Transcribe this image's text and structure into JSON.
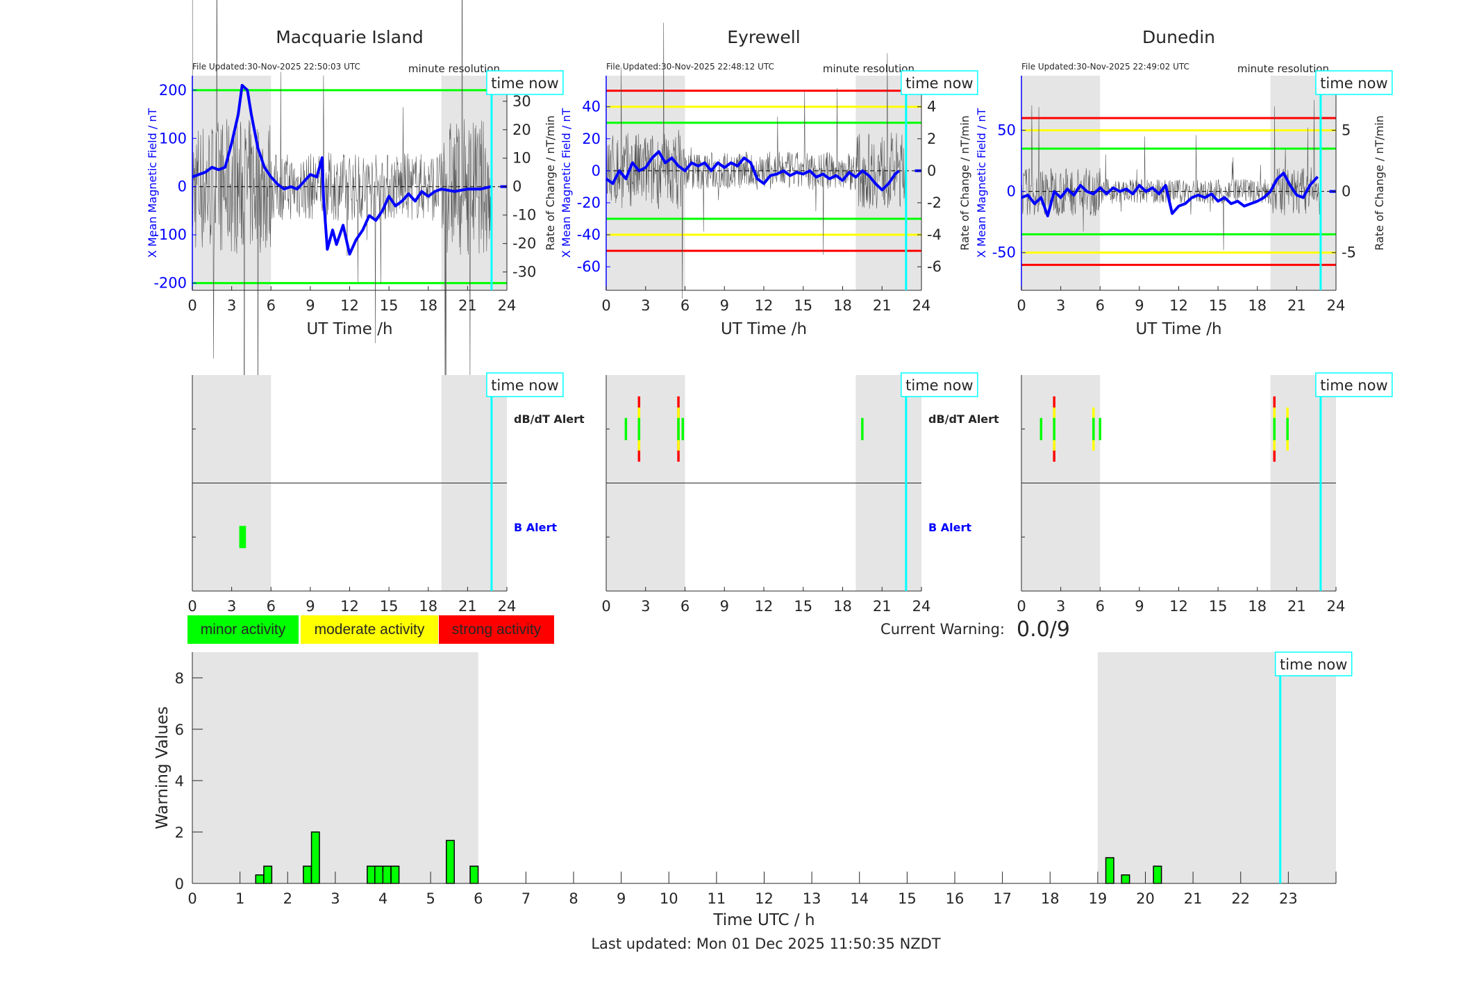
{
  "colors": {
    "night_shade": "#e5e5e5",
    "time_now": "#00ffff",
    "field": "#0000ff",
    "minor": "#00ff00",
    "moderate": "#ffff00",
    "strong": "#ff0000",
    "noise": "#555555"
  },
  "stations": [
    {
      "title": "Macquarie Island",
      "file_updated": "File Updated:30-Nov-2025 22:50:03 UTC",
      "resolution": "minute resolution",
      "ylabel_left": "X Mean Magnetic Field / nT",
      "ylabel_right": "Rate of Change / nT/min",
      "xlabel": "UT Time /h",
      "ylim": [
        -215,
        230
      ],
      "yticks": [
        -200,
        -100,
        0,
        100,
        200
      ],
      "rate_scale": 5.9,
      "rate_ticks": [
        -30,
        -20,
        -10,
        0,
        10,
        20,
        30
      ],
      "noise_amp": 12,
      "thresholds": [
        {
          "value": 200,
          "level": "minor"
        },
        {
          "value": -200,
          "level": "minor"
        }
      ],
      "field_series": [
        [
          0,
          20
        ],
        [
          0.5,
          25
        ],
        [
          1,
          30
        ],
        [
          1.5,
          40
        ],
        [
          2,
          35
        ],
        [
          2.5,
          40
        ],
        [
          3,
          90
        ],
        [
          3.5,
          150
        ],
        [
          3.8,
          210
        ],
        [
          4.2,
          200
        ],
        [
          4.5,
          150
        ],
        [
          5,
          80
        ],
        [
          5.5,
          40
        ],
        [
          6,
          20
        ],
        [
          6.5,
          5
        ],
        [
          7,
          -5
        ],
        [
          7.5,
          0
        ],
        [
          8,
          -5
        ],
        [
          8.5,
          10
        ],
        [
          9,
          25
        ],
        [
          9.5,
          20
        ],
        [
          9.9,
          60
        ],
        [
          10,
          -20
        ],
        [
          10.3,
          -130
        ],
        [
          10.7,
          -90
        ],
        [
          11,
          -120
        ],
        [
          11.5,
          -80
        ],
        [
          12,
          -140
        ],
        [
          12.5,
          -110
        ],
        [
          13,
          -90
        ],
        [
          13.5,
          -60
        ],
        [
          14,
          -70
        ],
        [
          14.5,
          -50
        ],
        [
          15,
          -20
        ],
        [
          15.5,
          -40
        ],
        [
          16,
          -30
        ],
        [
          16.5,
          -15
        ],
        [
          17,
          -30
        ],
        [
          17.5,
          -10
        ],
        [
          18,
          -20
        ],
        [
          18.5,
          -10
        ],
        [
          19,
          -5
        ],
        [
          20,
          -10
        ],
        [
          21,
          -5
        ],
        [
          22,
          -5
        ],
        [
          22.8,
          0
        ]
      ],
      "db_dt_alerts": [],
      "b_alerts": [
        {
          "hour": 3.67,
          "level": 1
        },
        {
          "hour": 3.83,
          "level": 1
        },
        {
          "hour": 4.0,
          "level": 1
        }
      ]
    },
    {
      "title": "Eyrewell",
      "file_updated": "File Updated:30-Nov-2025 22:48:12 UTC",
      "resolution": "minute resolution",
      "ylabel_left": "X Mean Magnetic Field / nT",
      "ylabel_right": "Rate of Change / nT/min",
      "xlabel": "UT Time /h",
      "ylim": [
        -74.7,
        59.4
      ],
      "yticks": [
        -60,
        -40,
        -20,
        0,
        20,
        40
      ],
      "rate_scale": 10,
      "rate_ticks": [
        -6,
        -4,
        -2,
        0,
        2,
        4
      ],
      "noise_amp": 1.2,
      "thresholds": [
        {
          "value": 50,
          "level": "strong"
        },
        {
          "value": 40,
          "level": "moderate"
        },
        {
          "value": 30,
          "level": "minor"
        },
        {
          "value": -30,
          "level": "minor"
        },
        {
          "value": -40,
          "level": "moderate"
        },
        {
          "value": -50,
          "level": "strong"
        }
      ],
      "field_series": [
        [
          0,
          -5
        ],
        [
          0.5,
          -8
        ],
        [
          1,
          0
        ],
        [
          1.5,
          -5
        ],
        [
          2,
          5
        ],
        [
          2.5,
          0
        ],
        [
          3,
          2
        ],
        [
          3.5,
          8
        ],
        [
          4,
          12
        ],
        [
          4.5,
          5
        ],
        [
          5,
          8
        ],
        [
          5.5,
          3
        ],
        [
          6,
          0
        ],
        [
          6.5,
          5
        ],
        [
          7,
          3
        ],
        [
          7.5,
          5
        ],
        [
          8,
          0
        ],
        [
          8.5,
          5
        ],
        [
          9,
          2
        ],
        [
          9.5,
          5
        ],
        [
          10,
          3
        ],
        [
          10.5,
          8
        ],
        [
          11,
          5
        ],
        [
          11.5,
          -5
        ],
        [
          12,
          -8
        ],
        [
          12.5,
          -3
        ],
        [
          13,
          -2
        ],
        [
          13.5,
          0
        ],
        [
          14,
          -3
        ],
        [
          14.5,
          -1
        ],
        [
          15,
          -2
        ],
        [
          15.5,
          0
        ],
        [
          16,
          -4
        ],
        [
          16.5,
          -2
        ],
        [
          17,
          -5
        ],
        [
          17.5,
          -3
        ],
        [
          18,
          -6
        ],
        [
          18.5,
          -1
        ],
        [
          19,
          -4
        ],
        [
          19.5,
          0
        ],
        [
          20,
          -3
        ],
        [
          20.5,
          -8
        ],
        [
          21,
          -12
        ],
        [
          21.5,
          -8
        ],
        [
          22,
          -2
        ],
        [
          22.3,
          0
        ]
      ],
      "db_dt_alerts": [
        {
          "hour": 1.5,
          "level": 1
        },
        {
          "hour": 2.5,
          "level": 3
        },
        {
          "hour": 5.5,
          "level": 3
        },
        {
          "hour": 5.83,
          "level": 1
        },
        {
          "hour": 19.5,
          "level": 1
        }
      ],
      "b_alerts": []
    },
    {
      "title": "Dunedin",
      "file_updated": "File Updated:30-Nov-2025 22:49:02 UTC",
      "resolution": "minute resolution",
      "ylabel_left": "X Mean Magnetic Field / nT",
      "ylabel_right": "Rate of Change / nT/min",
      "xlabel": "UT Time /h",
      "ylim": [
        -80.8,
        94.6
      ],
      "yticks": [
        -50,
        0,
        50
      ],
      "rate_scale": 10,
      "rate_ticks": [
        -5,
        0,
        5
      ],
      "noise_amp": 1.0,
      "thresholds": [
        {
          "value": 60,
          "level": "strong"
        },
        {
          "value": 50,
          "level": "moderate"
        },
        {
          "value": 35,
          "level": "minor"
        },
        {
          "value": -35,
          "level": "minor"
        },
        {
          "value": -50,
          "level": "moderate"
        },
        {
          "value": -60,
          "level": "strong"
        }
      ],
      "field_series": [
        [
          0,
          -5
        ],
        [
          0.5,
          -3
        ],
        [
          1,
          -10
        ],
        [
          1.5,
          -5
        ],
        [
          2,
          -20
        ],
        [
          2.5,
          0
        ],
        [
          3,
          -5
        ],
        [
          3.5,
          2
        ],
        [
          4,
          -3
        ],
        [
          4.5,
          5
        ],
        [
          5,
          0
        ],
        [
          5.5,
          -2
        ],
        [
          6,
          3
        ],
        [
          6.5,
          -2
        ],
        [
          7,
          3
        ],
        [
          7.5,
          0
        ],
        [
          8,
          2
        ],
        [
          8.5,
          -2
        ],
        [
          9,
          5
        ],
        [
          9.5,
          0
        ],
        [
          10,
          3
        ],
        [
          10.5,
          -2
        ],
        [
          11,
          5
        ],
        [
          11.5,
          -18
        ],
        [
          12,
          -12
        ],
        [
          12.5,
          -10
        ],
        [
          13,
          -5
        ],
        [
          13.5,
          -3
        ],
        [
          14,
          -5
        ],
        [
          14.5,
          -2
        ],
        [
          15,
          -8
        ],
        [
          15.5,
          -5
        ],
        [
          16,
          -10
        ],
        [
          16.5,
          -8
        ],
        [
          17,
          -12
        ],
        [
          17.5,
          -10
        ],
        [
          18,
          -8
        ],
        [
          18.5,
          -5
        ],
        [
          19,
          0
        ],
        [
          19.5,
          10
        ],
        [
          20,
          15
        ],
        [
          20.5,
          5
        ],
        [
          21,
          -3
        ],
        [
          21.5,
          -5
        ],
        [
          22,
          5
        ],
        [
          22.6,
          12
        ]
      ],
      "db_dt_alerts": [
        {
          "hour": 1.5,
          "level": 1
        },
        {
          "hour": 2.5,
          "level": 3
        },
        {
          "hour": 5.5,
          "level": 2
        },
        {
          "hour": 6.0,
          "level": 1
        },
        {
          "hour": 19.3,
          "level": 3
        },
        {
          "hour": 20.3,
          "level": 2
        }
      ],
      "b_alerts": []
    }
  ],
  "xticks": [
    0,
    3,
    6,
    9,
    12,
    15,
    18,
    21,
    24
  ],
  "night_regions": [
    [
      0,
      6
    ],
    [
      19,
      24
    ]
  ],
  "time_now_hour": 22.83,
  "time_now_label": "time now",
  "alert_labels": {
    "dbdt": "dB/dT Alert",
    "b": "B Alert"
  },
  "legend": {
    "minor": "minor activity",
    "moderate": "moderate activity",
    "strong": "strong activity"
  },
  "current_warning": {
    "label": "Current Warning:",
    "value": "0.0/9"
  },
  "chart_data": {
    "type": "bar",
    "title": "",
    "xlabel": "Time UTC / h",
    "ylabel": "Warning Values",
    "xlim": [
      0,
      24
    ],
    "ylim": [
      0,
      9
    ],
    "xticks": [
      0,
      1,
      2,
      3,
      4,
      5,
      6,
      7,
      8,
      9,
      10,
      11,
      12,
      13,
      14,
      15,
      16,
      17,
      18,
      19,
      20,
      21,
      22,
      23
    ],
    "yticks": [
      0,
      2,
      4,
      6,
      8
    ],
    "bar_width_h": 0.1667,
    "x": [
      1.33,
      1.5,
      2.33,
      2.5,
      3.67,
      3.83,
      4.0,
      4.17,
      5.33,
      5.83,
      19.17,
      19.5,
      20.17
    ],
    "values": [
      0.33,
      0.67,
      0.67,
      2.0,
      0.67,
      0.67,
      0.67,
      0.67,
      1.67,
      0.67,
      1.0,
      0.33,
      0.67
    ]
  },
  "footer": "Last updated: Mon 01 Dec 2025 11:50:35 NZDT"
}
